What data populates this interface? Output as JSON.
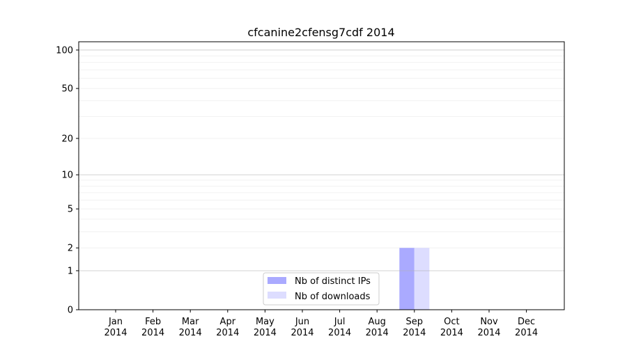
{
  "chart_data": {
    "type": "bar",
    "title": "cfcanine2cfensg7cdf 2014",
    "xlabel": "",
    "ylabel": "",
    "y_scale": "log(1+y)",
    "ylim": [
      0,
      116
    ],
    "grid": true,
    "legend_position": "bottom-center",
    "categories": [
      [
        "Jan",
        "2014"
      ],
      [
        "Feb",
        "2014"
      ],
      [
        "Mar",
        "2014"
      ],
      [
        "Apr",
        "2014"
      ],
      [
        "May",
        "2014"
      ],
      [
        "Jun",
        "2014"
      ],
      [
        "Jul",
        "2014"
      ],
      [
        "Aug",
        "2014"
      ],
      [
        "Sep",
        "2014"
      ],
      [
        "Oct",
        "2014"
      ],
      [
        "Nov",
        "2014"
      ],
      [
        "Dec",
        "2014"
      ]
    ],
    "y_ticks": [
      0,
      1,
      2,
      5,
      10,
      20,
      50,
      100
    ],
    "series": [
      {
        "name": "Nb of distinct IPs",
        "color": "#aaaaff",
        "values": [
          0,
          0,
          0,
          0,
          0,
          0,
          0,
          0,
          2,
          0,
          0,
          0
        ]
      },
      {
        "name": "Nb of downloads",
        "color": "#ddddff",
        "values": [
          0,
          0,
          0,
          0,
          0,
          0,
          0,
          0,
          2,
          0,
          0,
          0
        ]
      }
    ]
  }
}
